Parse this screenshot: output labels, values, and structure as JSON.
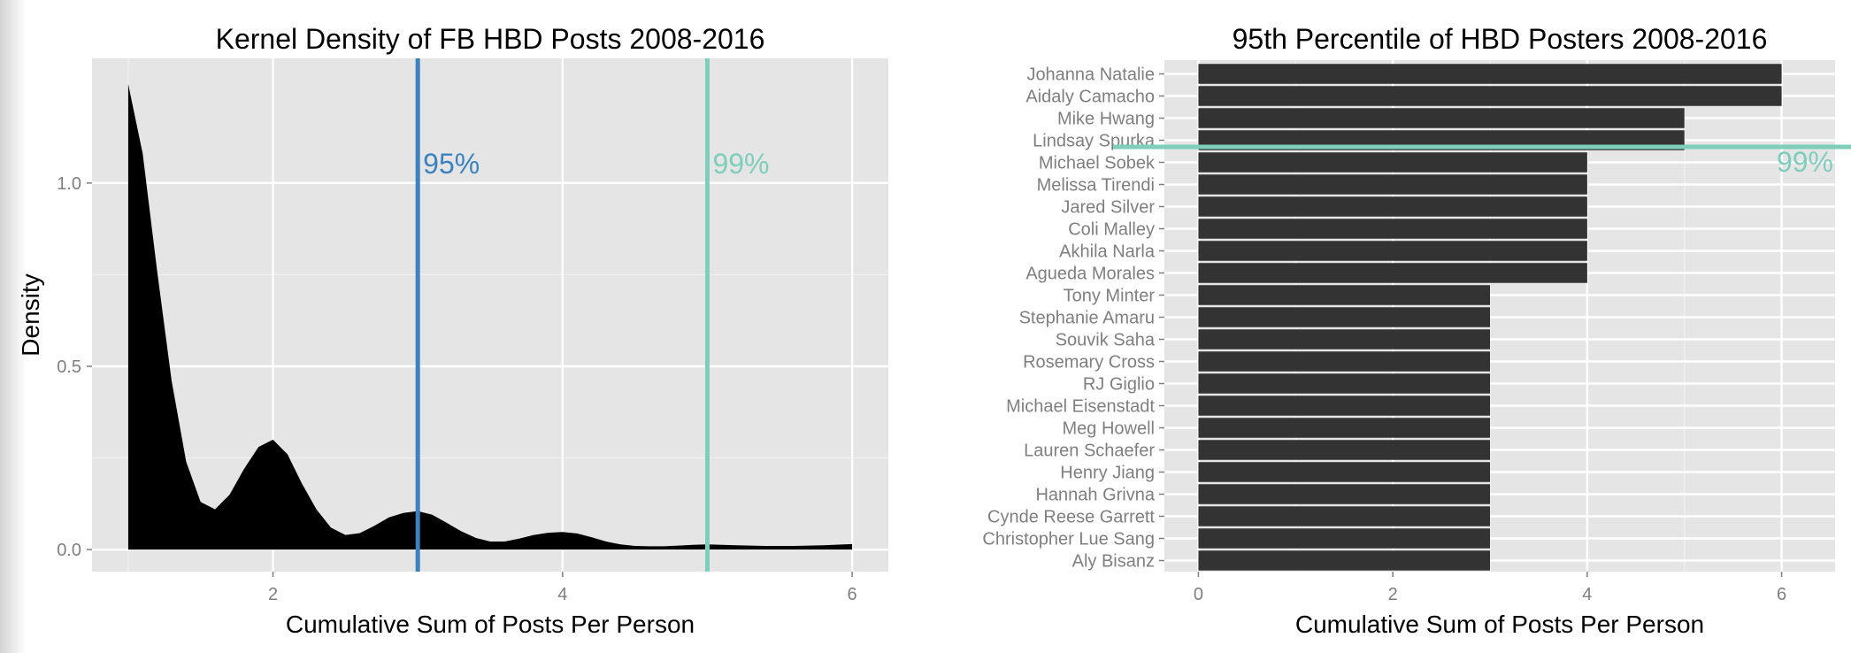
{
  "figure": {
    "colors": {
      "panel_bg": "#e5e5e5",
      "grid": "#ffffff",
      "density_fill": "#000000",
      "bar_fill": "#333333",
      "line_95": "#3b82be",
      "line_99": "#7fcdbb",
      "axis_text": "#7f7f7f",
      "title_text": "#000000"
    }
  },
  "chart_data": [
    {
      "type": "area",
      "title": "Kernel Density of FB HBD Posts 2008-2016",
      "xlabel": "Cumulative Sum of Posts Per Person",
      "ylabel": "Density",
      "xlim": [
        0.75,
        6.25
      ],
      "ylim": [
        -0.06,
        1.34
      ],
      "x_ticks": [
        2,
        4,
        6
      ],
      "x_tick_labels": [
        "2",
        "4",
        "6"
      ],
      "y_ticks": [
        0.0,
        0.5,
        1.0
      ],
      "y_tick_labels": [
        "0.0",
        "0.5",
        "1.0"
      ],
      "grid": true,
      "series": [
        {
          "x": [
            1.0,
            1.1,
            1.2,
            1.3,
            1.4,
            1.5,
            1.6,
            1.7,
            1.8,
            1.9,
            2.0,
            2.1,
            2.2,
            2.3,
            2.4,
            2.5,
            2.6,
            2.7,
            2.8,
            2.9,
            3.0,
            3.1,
            3.2,
            3.3,
            3.4,
            3.5,
            3.6,
            3.7,
            3.8,
            3.9,
            4.0,
            4.1,
            4.2,
            4.3,
            4.4,
            4.5,
            4.6,
            4.7,
            4.8,
            4.9,
            5.0,
            5.2,
            5.4,
            5.6,
            5.8,
            6.0
          ],
          "y": [
            1.27,
            1.08,
            0.76,
            0.46,
            0.24,
            0.13,
            0.11,
            0.15,
            0.22,
            0.28,
            0.3,
            0.26,
            0.18,
            0.11,
            0.06,
            0.04,
            0.045,
            0.065,
            0.088,
            0.1,
            0.105,
            0.095,
            0.073,
            0.05,
            0.032,
            0.022,
            0.022,
            0.03,
            0.04,
            0.046,
            0.048,
            0.044,
            0.034,
            0.022,
            0.014,
            0.01,
            0.009,
            0.009,
            0.011,
            0.013,
            0.014,
            0.012,
            0.01,
            0.01,
            0.012,
            0.015
          ]
        }
      ],
      "vlines": [
        {
          "label": "95%",
          "x": 3,
          "color": "#3b82be"
        },
        {
          "label": "99%",
          "x": 5,
          "color": "#7fcdbb"
        }
      ]
    },
    {
      "type": "bar",
      "orientation": "horizontal",
      "title": "95th Percentile of HBD Posters 2008-2016",
      "xlabel": "Cumulative Sum of Posts Per Person",
      "ylabel": "",
      "xlim": [
        -0.35,
        6.55
      ],
      "x_ticks": [
        0,
        2,
        4,
        6
      ],
      "x_tick_labels": [
        "0",
        "2",
        "4",
        "6"
      ],
      "grid": true,
      "categories": [
        "Johanna Natalie",
        "Aidaly Camacho",
        "Mike Hwang",
        "Lindsay Spurka",
        "Michael Sobek",
        "Melissa Tirendi",
        "Jared Silver",
        "Coli Malley",
        "Akhila Narla",
        "Agueda Morales",
        "Tony Minter",
        "Stephanie Amaru",
        "Souvik Saha",
        "Rosemary Cross",
        "RJ Giglio",
        "Michael Eisenstadt",
        "Meg Howell",
        "Lauren Schaefer",
        "Henry Jiang",
        "Hannah Grivna",
        "Cynde Reese Garrett",
        "Christopher Lue Sang",
        "Aly Bisanz"
      ],
      "values": [
        6,
        6,
        5,
        5,
        4,
        4,
        4,
        4,
        4,
        4,
        3,
        3,
        3,
        3,
        3,
        3,
        3,
        3,
        3,
        3,
        3,
        3,
        3
      ],
      "hline": {
        "label": "99%",
        "between": [
          "Lindsay Spurka",
          "Michael Sobek"
        ],
        "color": "#7fcdbb"
      }
    }
  ]
}
